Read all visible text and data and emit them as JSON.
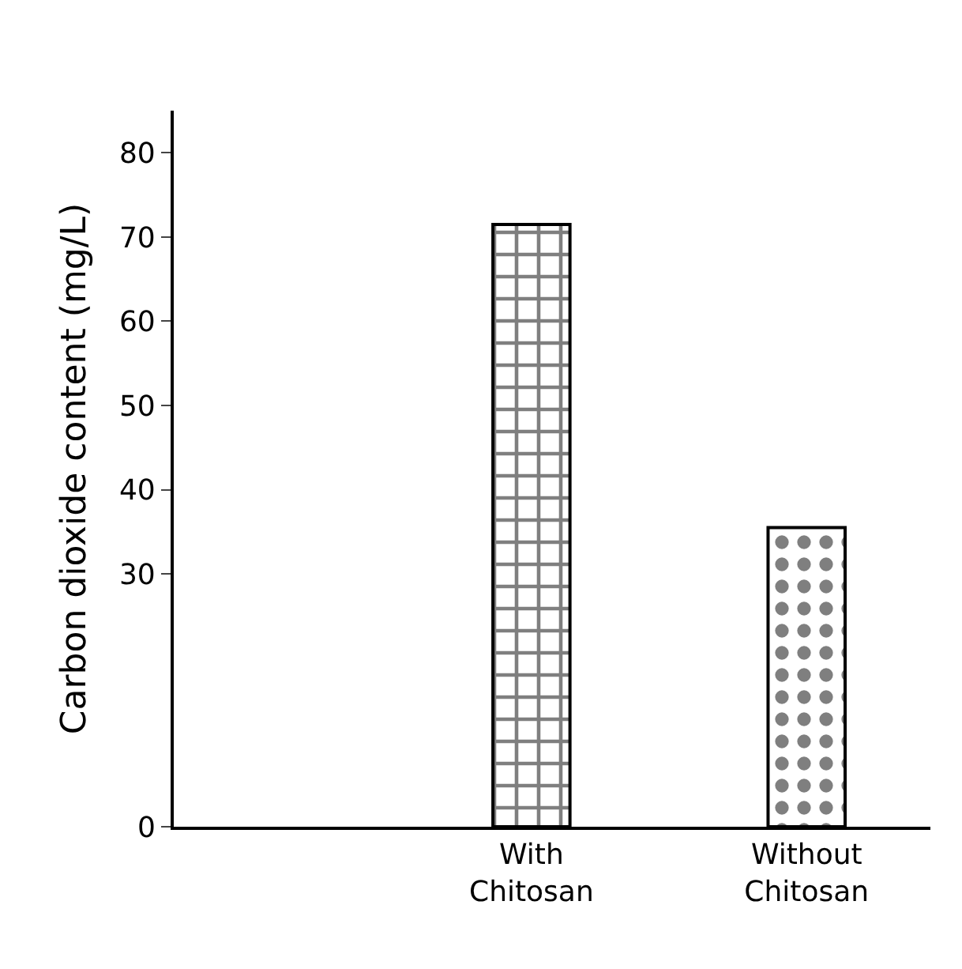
{
  "chart_data": {
    "type": "bar",
    "ylabel": "Carbon dioxide content (mg/L)",
    "categories": [
      "With\nChitosan",
      "Without\nChitosan"
    ],
    "values": [
      71.5,
      35.5
    ],
    "colors": [
      "#000000",
      "#000000"
    ],
    "ylim": [
      0,
      85
    ],
    "yticks": [
      0,
      30,
      40,
      50,
      60,
      70,
      80
    ],
    "grid": false,
    "legend": false
  }
}
